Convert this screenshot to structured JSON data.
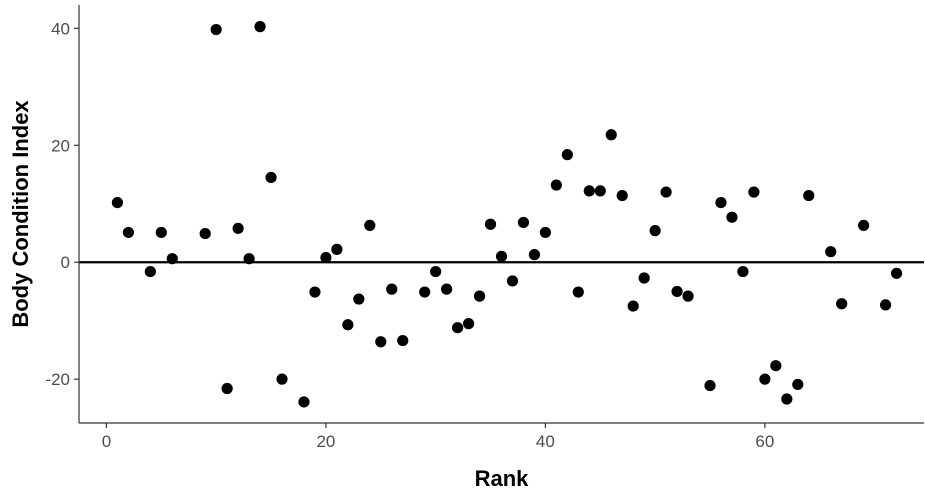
{
  "chart_data": {
    "type": "scatter",
    "title": "",
    "xlabel": "Rank",
    "ylabel": "Body Condition Index",
    "xlim": [
      -2.5,
      74.5
    ],
    "ylim": [
      -27.5,
      44
    ],
    "x_ticks": [
      0,
      20,
      40,
      60
    ],
    "y_ticks": [
      -20,
      0,
      20,
      40
    ],
    "grid": false,
    "legend": "none",
    "reference_line": {
      "y": 0,
      "color": "#000000"
    },
    "point_color": "#000000",
    "axis_color": "#333333",
    "series": [
      {
        "x": [
          1,
          2,
          4,
          5,
          6,
          9,
          10,
          11,
          12,
          13,
          14,
          15,
          16,
          18,
          19,
          20,
          21,
          22,
          23,
          24,
          25,
          26,
          27,
          29,
          30,
          31,
          32,
          33,
          34,
          35,
          36,
          37,
          38,
          39,
          40,
          41,
          42,
          43,
          44,
          45,
          46,
          47,
          48,
          49,
          50,
          51,
          52,
          53,
          55,
          56,
          57,
          58,
          59,
          60,
          61,
          62,
          63,
          64,
          66,
          67,
          69,
          71,
          72
        ],
        "y": [
          10.2,
          5.1,
          -1.6,
          5.1,
          0.6,
          4.9,
          39.8,
          -21.6,
          5.8,
          0.6,
          40.3,
          14.5,
          -20.0,
          -23.9,
          -5.1,
          0.8,
          2.2,
          -10.7,
          -6.3,
          6.3,
          -13.6,
          -4.6,
          -13.4,
          -5.1,
          -1.6,
          -4.6,
          -11.2,
          -10.5,
          -5.8,
          6.5,
          1.0,
          -3.2,
          6.8,
          1.3,
          5.1,
          13.2,
          18.4,
          -5.1,
          12.2,
          12.2,
          21.8,
          11.4,
          -7.5,
          -2.7,
          5.4,
          12.0,
          -5.0,
          -5.8,
          -21.1,
          10.2,
          7.7,
          -1.6,
          12.0,
          -20.0,
          -17.7,
          -23.4,
          -20.9,
          11.4,
          1.8,
          -7.1,
          6.3,
          -7.3,
          -1.9
        ]
      }
    ]
  }
}
